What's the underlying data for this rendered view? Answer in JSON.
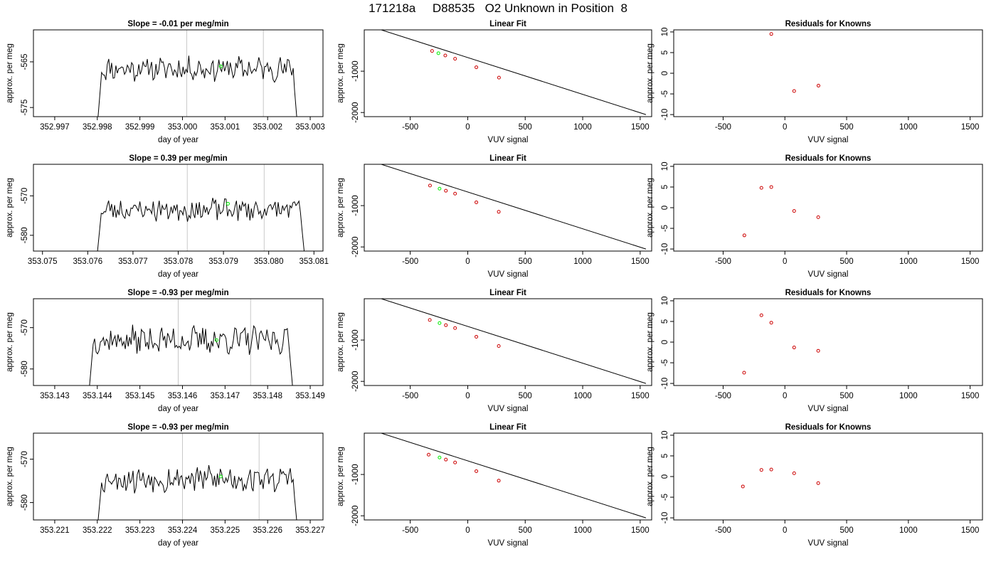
{
  "page_title": "171218a     D88535   O2 Unknown in Position  8",
  "chart_data": [
    {
      "type": "line",
      "title": "Slope =  -0.01  per meg/min",
      "xlabel": "day of year",
      "ylabel": "approx. per meg",
      "xlim": [
        352.9965,
        353.0033
      ],
      "ylim": [
        -577,
        -558
      ],
      "xticks": [
        352.997,
        352.998,
        352.999,
        353.0,
        353.001,
        353.002,
        353.003
      ],
      "xtick_labels": [
        "352.997",
        "352.998",
        "352.999",
        "353.000",
        "353.001",
        "353.002",
        "353.003"
      ],
      "yticks": [
        -565,
        -575
      ],
      "ytick_labels": [
        "-565",
        "-575"
      ],
      "trace": {
        "x_start": 352.998,
        "x_end": 353.0027,
        "baseline": -566.5,
        "amplitude": 2.2,
        "seed": 11
      },
      "vlines": [
        353.0001,
        353.0019
      ],
      "green_point": {
        "x": 353.0009,
        "y": -566
      }
    },
    {
      "type": "scatter",
      "title": "Linear Fit",
      "xlabel": "VUV signal",
      "ylabel": "approx. per meg",
      "xlim": [
        -900,
        1600
      ],
      "ylim": [
        -2100,
        0
      ],
      "xticks": [
        -500,
        0,
        500,
        1000,
        1500
      ],
      "xtick_labels": [
        "-500",
        "0",
        "500",
        "1000",
        "1500"
      ],
      "yticks": [
        -1000,
        -2000
      ],
      "ytick_labels": [
        "-1000",
        "-2000"
      ],
      "knowns": [
        {
          "x": -310,
          "y": -510
        },
        {
          "x": -195,
          "y": -620
        },
        {
          "x": -110,
          "y": -700
        },
        {
          "x": 75,
          "y": -905
        },
        {
          "x": 272,
          "y": -1155
        }
      ],
      "unknown": {
        "x": -255,
        "y": -565
      },
      "fit_line": [
        {
          "x": -820,
          "y": 60
        },
        {
          "x": 1550,
          "y": -2050
        }
      ]
    },
    {
      "type": "scatter",
      "title": "Residuals for Knowns",
      "xlabel": "VUV signal",
      "ylabel": "approx. per meg",
      "xlim": [
        -900,
        1600
      ],
      "ylim": [
        -10.5,
        10.5
      ],
      "xticks": [
        -500,
        0,
        500,
        1000,
        1500
      ],
      "xtick_labels": [
        "-500",
        "0",
        "500",
        "1000",
        "1500"
      ],
      "yticks": [
        10,
        5,
        0,
        -5,
        -10
      ],
      "ytick_labels": [
        "10",
        "5",
        "0",
        "-5",
        "-10"
      ],
      "points": [
        {
          "x": -110,
          "y": 9.5
        },
        {
          "x": 75,
          "y": -4.3
        },
        {
          "x": 272,
          "y": -3.0
        }
      ]
    },
    {
      "type": "line",
      "title": "Slope =  0.39  per meg/min",
      "xlabel": "day of year",
      "ylabel": "approx. per meg",
      "xlim": [
        353.0748,
        353.0812
      ],
      "ylim": [
        -584,
        -562
      ],
      "xticks": [
        353.075,
        353.076,
        353.077,
        353.078,
        353.079,
        353.08,
        353.081
      ],
      "xtick_labels": [
        "353.075",
        "353.076",
        "353.077",
        "353.078",
        "353.079",
        "353.080",
        "353.081"
      ],
      "yticks": [
        -570,
        -580
      ],
      "ytick_labels": [
        "-570",
        "-580"
      ],
      "trace": {
        "x_start": 353.0762,
        "x_end": 353.0808,
        "baseline": -573.5,
        "amplitude": 2.5,
        "seed": 23
      },
      "vlines": [
        353.0782,
        353.0799
      ],
      "green_point": {
        "x": 353.0791,
        "y": -572
      }
    },
    {
      "type": "scatter",
      "title": "Linear Fit",
      "xlabel": "VUV signal",
      "ylabel": "approx. per meg",
      "xlim": [
        -900,
        1600
      ],
      "ylim": [
        -2100,
        0
      ],
      "xticks": [
        -500,
        0,
        500,
        1000,
        1500
      ],
      "xtick_labels": [
        "-500",
        "0",
        "500",
        "1000",
        "1500"
      ],
      "yticks": [
        -1000,
        -2000
      ],
      "ytick_labels": [
        "-1000",
        "-2000"
      ],
      "knowns": [
        {
          "x": -328,
          "y": -515
        },
        {
          "x": -190,
          "y": -640
        },
        {
          "x": -110,
          "y": -710
        },
        {
          "x": 75,
          "y": -920
        },
        {
          "x": 270,
          "y": -1150
        }
      ],
      "unknown": {
        "x": -245,
        "y": -590
      },
      "fit_line": [
        {
          "x": -820,
          "y": 60
        },
        {
          "x": 1550,
          "y": -2050
        }
      ]
    },
    {
      "type": "scatter",
      "title": "Residuals for Knowns",
      "xlabel": "VUV signal",
      "ylabel": "approx. per meg",
      "xlim": [
        -900,
        1600
      ],
      "ylim": [
        -10.5,
        10.5
      ],
      "xticks": [
        -500,
        0,
        500,
        1000,
        1500
      ],
      "xtick_labels": [
        "-500",
        "0",
        "500",
        "1000",
        "1500"
      ],
      "yticks": [
        10,
        5,
        0,
        -5,
        -10
      ],
      "ytick_labels": [
        "10",
        "5",
        "0",
        "-5",
        "-10"
      ],
      "points": [
        {
          "x": -328,
          "y": -6.7
        },
        {
          "x": -190,
          "y": 4.8
        },
        {
          "x": -110,
          "y": 5.0
        },
        {
          "x": 75,
          "y": -0.8
        },
        {
          "x": 270,
          "y": -2.3
        }
      ]
    },
    {
      "type": "line",
      "title": "Slope =  -0.93  per meg/min",
      "xlabel": "day of year",
      "ylabel": "approx. per meg",
      "xlim": [
        353.1425,
        353.1493
      ],
      "ylim": [
        -584,
        -563
      ],
      "xticks": [
        353.143,
        353.144,
        353.145,
        353.146,
        353.147,
        353.148,
        353.149
      ],
      "xtick_labels": [
        "353.143",
        "353.144",
        "353.145",
        "353.146",
        "353.147",
        "353.148",
        "353.149"
      ],
      "yticks": [
        -570,
        -580
      ],
      "ytick_labels": [
        "-570",
        "-580"
      ],
      "trace": {
        "x_start": 353.1438,
        "x_end": 353.1486,
        "baseline": -573,
        "amplitude": 2.8,
        "seed": 37
      },
      "vlines": [
        353.1459,
        353.1476
      ],
      "green_point": {
        "x": 353.1468,
        "y": -573
      }
    },
    {
      "type": "scatter",
      "title": "Linear Fit",
      "xlabel": "VUV signal",
      "ylabel": "approx. per meg",
      "xlim": [
        -900,
        1600
      ],
      "ylim": [
        -2100,
        0
      ],
      "xticks": [
        -500,
        0,
        500,
        1000,
        1500
      ],
      "xtick_labels": [
        "-500",
        "0",
        "500",
        "1000",
        "1500"
      ],
      "yticks": [
        -1000,
        -2000
      ],
      "ytick_labels": [
        "-1000",
        "-2000"
      ],
      "knowns": [
        {
          "x": -330,
          "y": -515
        },
        {
          "x": -190,
          "y": -640
        },
        {
          "x": -110,
          "y": -710
        },
        {
          "x": 75,
          "y": -920
        },
        {
          "x": 270,
          "y": -1145
        }
      ],
      "unknown": {
        "x": -245,
        "y": -590
      },
      "fit_line": [
        {
          "x": -820,
          "y": 60
        },
        {
          "x": 1550,
          "y": -2050
        }
      ]
    },
    {
      "type": "scatter",
      "title": "Residuals for Knowns",
      "xlabel": "VUV signal",
      "ylabel": "approx. per meg",
      "xlim": [
        -900,
        1600
      ],
      "ylim": [
        -10.5,
        10.5
      ],
      "xticks": [
        -500,
        0,
        500,
        1000,
        1500
      ],
      "xtick_labels": [
        "-500",
        "0",
        "500",
        "1000",
        "1500"
      ],
      "yticks": [
        10,
        5,
        0,
        -5,
        -10
      ],
      "ytick_labels": [
        "10",
        "5",
        "0",
        "-5",
        "-10"
      ],
      "points": [
        {
          "x": -330,
          "y": -7.4
        },
        {
          "x": -190,
          "y": 6.5
        },
        {
          "x": -110,
          "y": 4.7
        },
        {
          "x": 75,
          "y": -1.3
        },
        {
          "x": 270,
          "y": -2.1
        }
      ]
    },
    {
      "type": "line",
      "title": "Slope =  -0.93  per meg/min",
      "xlabel": "day of year",
      "ylabel": "approx. per meg",
      "xlim": [
        353.2205,
        353.2273
      ],
      "ylim": [
        -584,
        -564
      ],
      "xticks": [
        353.221,
        353.222,
        353.223,
        353.224,
        353.225,
        353.226,
        353.227
      ],
      "xtick_labels": [
        "353.221",
        "353.222",
        "353.223",
        "353.224",
        "353.225",
        "353.226",
        "353.227"
      ],
      "yticks": [
        -570,
        -580
      ],
      "ytick_labels": [
        "-570",
        "-580"
      ],
      "trace": {
        "x_start": 353.222,
        "x_end": 353.2267,
        "baseline": -574.5,
        "amplitude": 2.7,
        "seed": 53
      },
      "vlines": [
        353.224,
        353.2258
      ],
      "green_point": {
        "x": 353.2249,
        "y": -574
      }
    },
    {
      "type": "scatter",
      "title": "Linear Fit",
      "xlabel": "VUV signal",
      "ylabel": "approx. per meg",
      "xlim": [
        -900,
        1600
      ],
      "ylim": [
        -2100,
        0
      ],
      "xticks": [
        -500,
        0,
        500,
        1000,
        1500
      ],
      "xtick_labels": [
        "-500",
        "0",
        "500",
        "1000",
        "1500"
      ],
      "yticks": [
        -1000,
        -2000
      ],
      "ytick_labels": [
        "-1000",
        "-2000"
      ],
      "knowns": [
        {
          "x": -340,
          "y": -520
        },
        {
          "x": -190,
          "y": -640
        },
        {
          "x": -110,
          "y": -710
        },
        {
          "x": 75,
          "y": -920
        },
        {
          "x": 270,
          "y": -1150
        }
      ],
      "unknown": {
        "x": -245,
        "y": -590
      },
      "fit_line": [
        {
          "x": -820,
          "y": 60
        },
        {
          "x": 1550,
          "y": -2050
        }
      ]
    },
    {
      "type": "scatter",
      "title": "Residuals for Knowns",
      "xlabel": "VUV signal",
      "ylabel": "approx. per meg",
      "xlim": [
        -900,
        1600
      ],
      "ylim": [
        -10.5,
        10.5
      ],
      "xticks": [
        -500,
        0,
        500,
        1000,
        1500
      ],
      "xtick_labels": [
        "-500",
        "0",
        "500",
        "1000",
        "1500"
      ],
      "yticks": [
        10,
        5,
        0,
        -5,
        -10
      ],
      "ytick_labels": [
        "10",
        "5",
        "0",
        "-5",
        "-10"
      ],
      "points": [
        {
          "x": -340,
          "y": -2.4
        },
        {
          "x": -190,
          "y": 1.6
        },
        {
          "x": -110,
          "y": 1.7
        },
        {
          "x": 75,
          "y": 0.8
        },
        {
          "x": 270,
          "y": -1.6
        }
      ]
    }
  ],
  "colors": {
    "trace": "#000000",
    "vline": "#c8c8c8",
    "unknown": "#00ee00",
    "known": "#cc0000",
    "axis": "#000000"
  }
}
